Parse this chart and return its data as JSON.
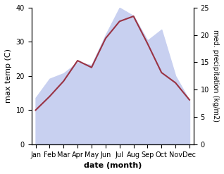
{
  "months": [
    "Jan",
    "Feb",
    "Mar",
    "Apr",
    "May",
    "Jun",
    "Jul",
    "Aug",
    "Sep",
    "Oct",
    "Nov",
    "Dec"
  ],
  "max_temp": [
    10,
    14,
    18.5,
    24.5,
    22.5,
    31,
    36,
    37.5,
    29.5,
    21,
    18,
    13
  ],
  "precipitation": [
    8.5,
    12,
    13,
    15,
    14.5,
    20,
    25,
    23.5,
    19,
    21,
    12.5,
    8
  ],
  "temp_color": "#993344",
  "precip_fill_color": "#c8d0f0",
  "temp_ylim": [
    0,
    40
  ],
  "precip_ylim": [
    0,
    25
  ],
  "xlabel": "date (month)",
  "ylabel_left": "max temp (C)",
  "ylabel_right": "med. precipitation (kg/m2)",
  "bg_color": "#ffffff"
}
